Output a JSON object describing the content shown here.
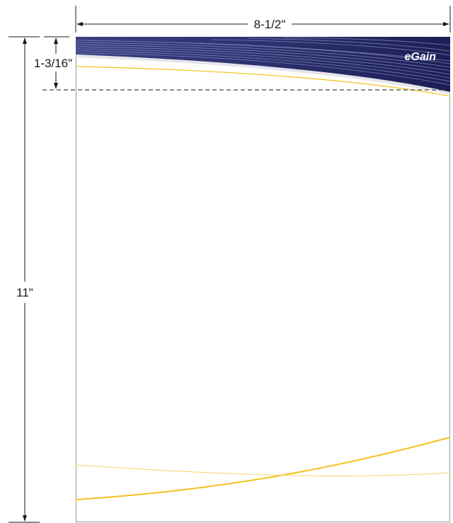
{
  "dimensions": {
    "width_label": "8-1/2\"",
    "height_label": "11\"",
    "header_label": "1-3/16\""
  },
  "brand": {
    "logo_text": "eGain"
  },
  "colors": {
    "header_band": "#2b2f6b",
    "header_band_dark": "#1c1f55",
    "stripe": "#8e94c8",
    "accent_yellow": "#f2c21b",
    "page_border": "#9a9a9a",
    "dim_line": "#1a1a1a"
  }
}
